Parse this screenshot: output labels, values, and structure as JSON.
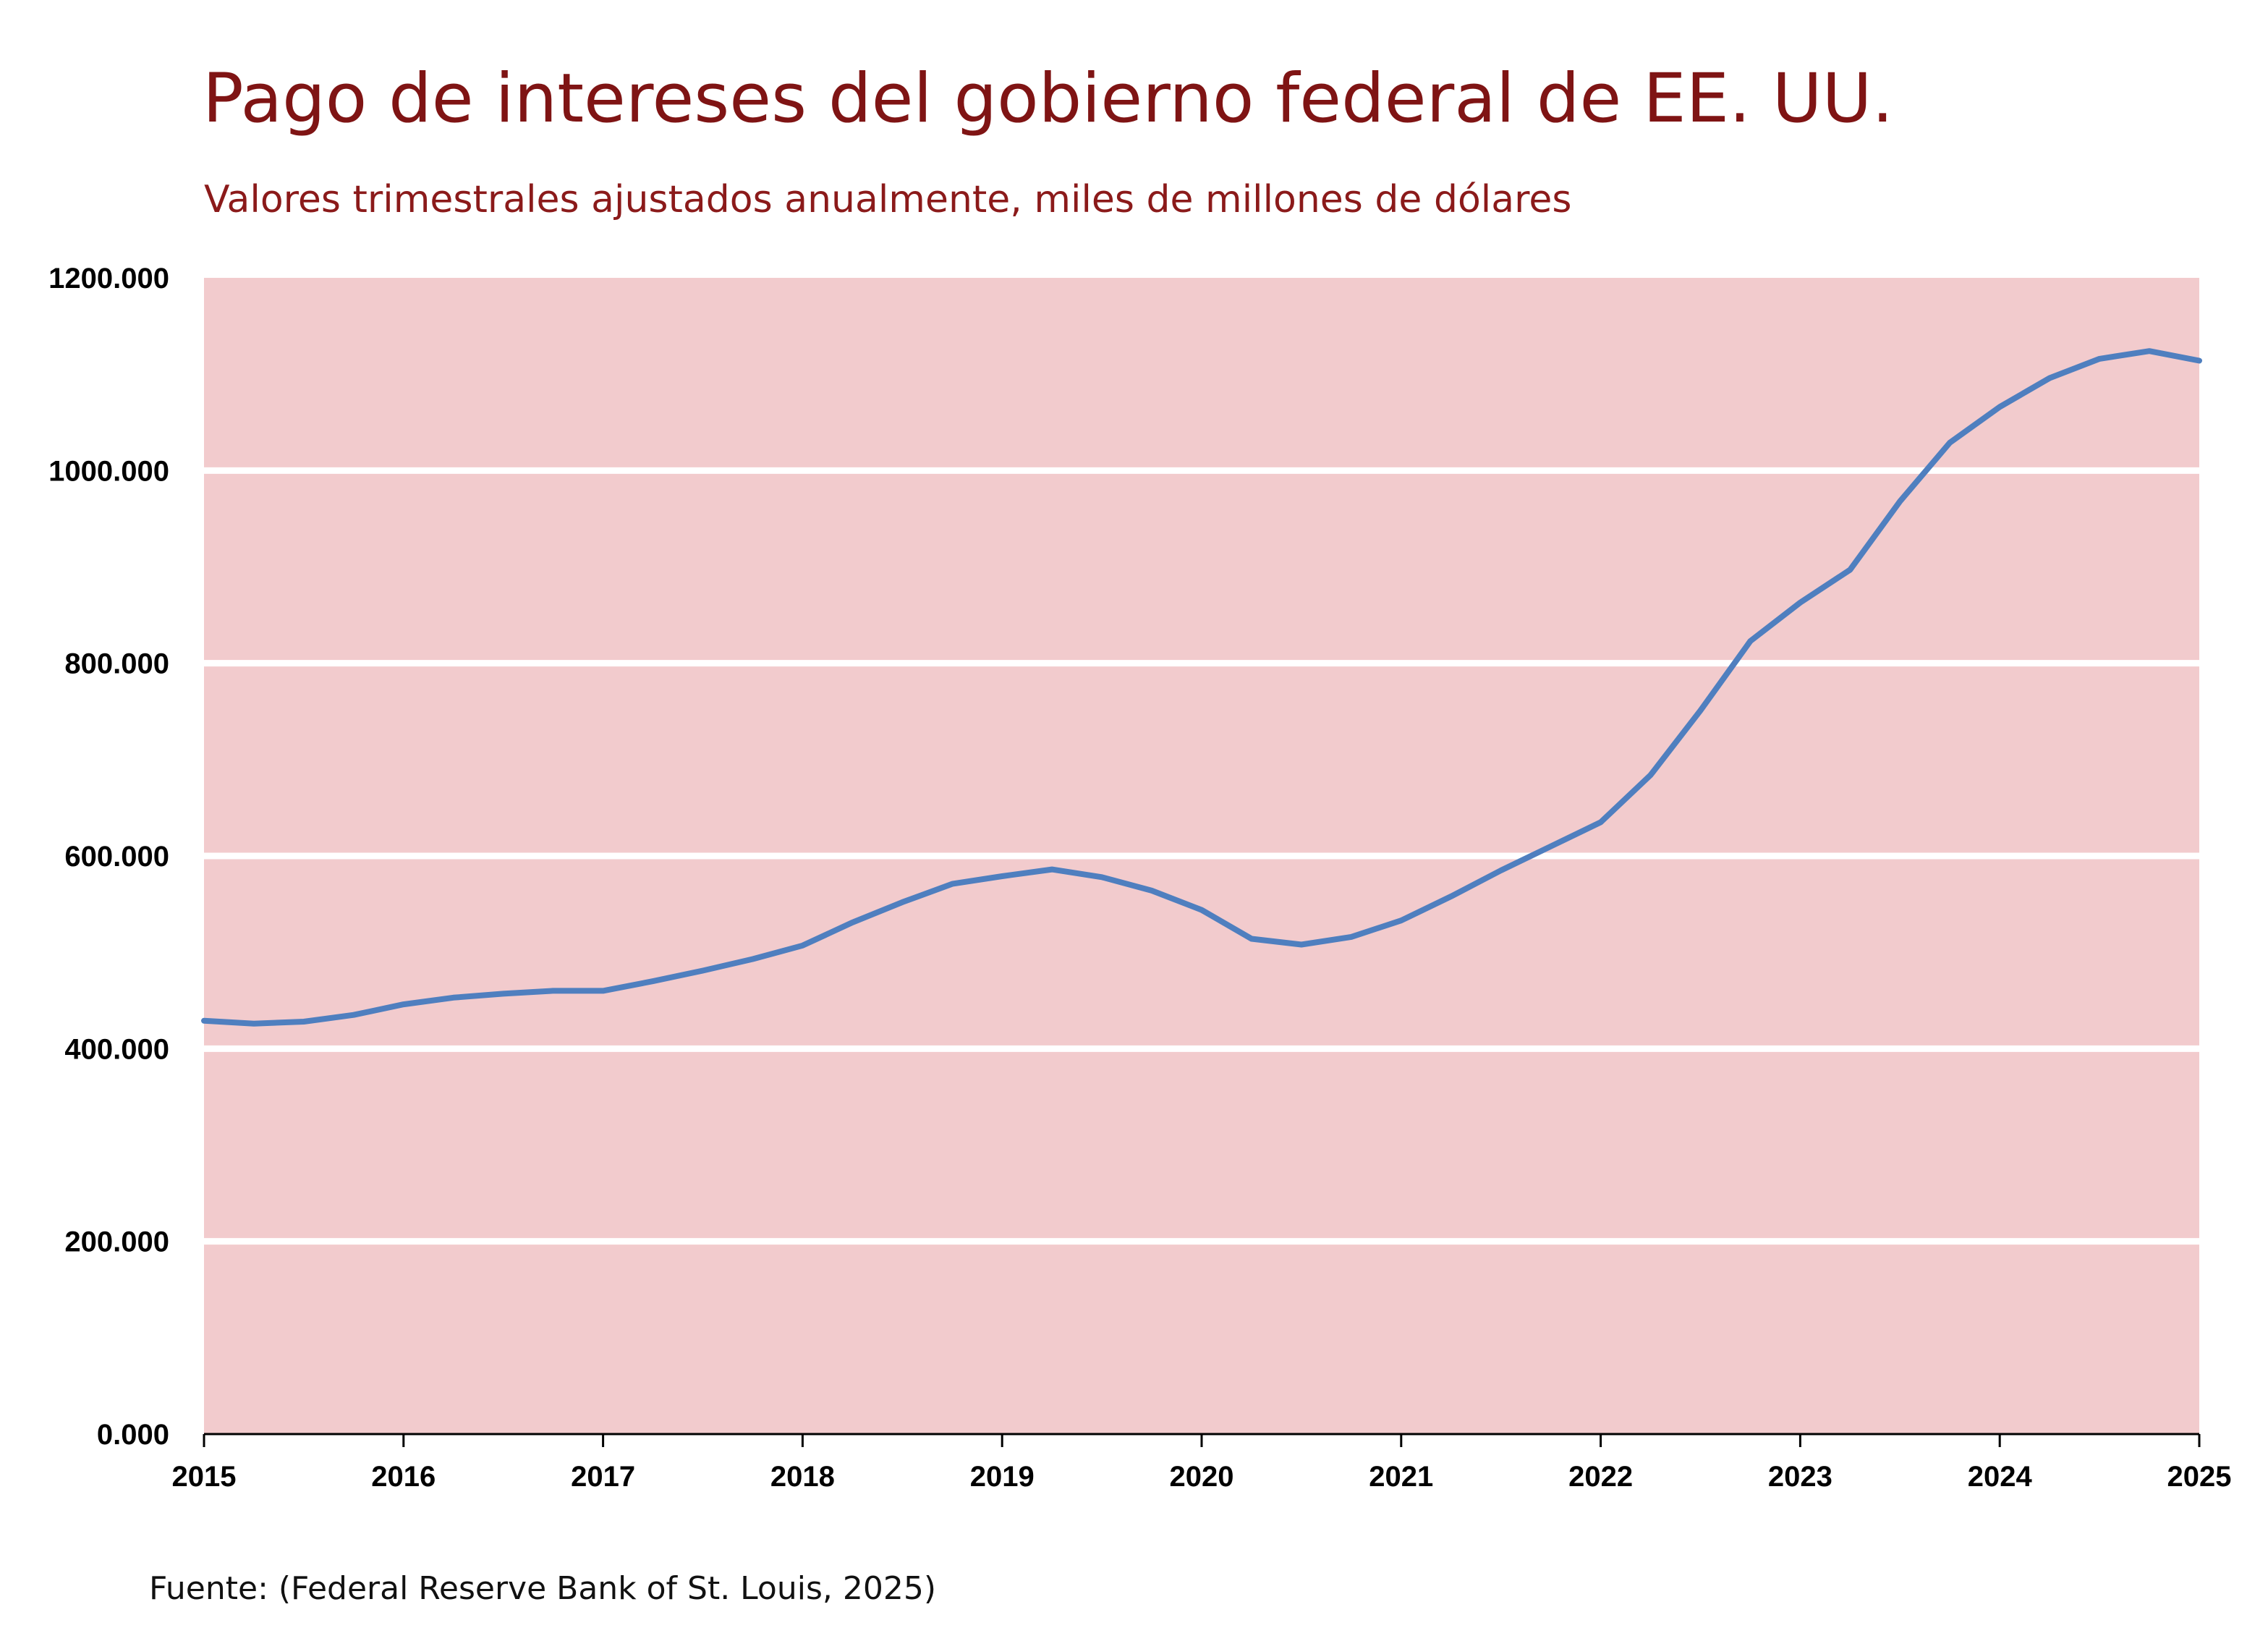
{
  "title": "Pago de intereses del gobierno federal de EE. UU.",
  "subtitle": "Valores trimestrales ajustados anualmente, miles de millones de dólares",
  "source": "Fuente: (Federal Reserve Bank of St. Louis, 2025)",
  "colors": {
    "title": "#7f1414",
    "plot_background": "#f2cbcd",
    "gridline": "#ffffff",
    "series_line": "#4f7fbf"
  },
  "chart_data": {
    "type": "line",
    "title": "Pago de intereses del gobierno federal de EE. UU.",
    "subtitle": "Valores trimestrales ajustados anualmente, miles de millones de dólares",
    "xlabel": "",
    "ylabel": "",
    "xlim": [
      2015,
      2025
    ],
    "ylim": [
      0,
      1200
    ],
    "grid": true,
    "x_ticks": [
      "2015",
      "2016",
      "2017",
      "2018",
      "2019",
      "2020",
      "2021",
      "2022",
      "2023",
      "2024",
      "2025"
    ],
    "y_ticks": [
      "0.000",
      "200.000",
      "400.000",
      "600.000",
      "800.000",
      "1000.000",
      "1200.000"
    ],
    "series": [
      {
        "name": "",
        "x": [
          2015.0,
          2015.25,
          2015.5,
          2015.75,
          2016.0,
          2016.25,
          2016.5,
          2016.75,
          2017.0,
          2017.25,
          2017.5,
          2017.75,
          2018.0,
          2018.25,
          2018.5,
          2018.75,
          2019.0,
          2019.25,
          2019.5,
          2019.75,
          2020.0,
          2020.25,
          2020.5,
          2020.75,
          2021.0,
          2021.25,
          2021.5,
          2021.75,
          2022.0,
          2022.25,
          2022.5,
          2022.75,
          2023.0,
          2023.25,
          2023.5,
          2023.75,
          2024.0,
          2024.25,
          2024.5,
          2024.75,
          2025.0
        ],
        "y": [
          429,
          426,
          428,
          435,
          446,
          453,
          457,
          460,
          460,
          470,
          481,
          493,
          507,
          531,
          552,
          571,
          579,
          586,
          578,
          564,
          544,
          514,
          508,
          516,
          533,
          558,
          585,
          610,
          635,
          684,
          751,
          823,
          863,
          897,
          968,
          1029,
          1066,
          1096,
          1116,
          1124,
          1114
        ]
      }
    ]
  }
}
